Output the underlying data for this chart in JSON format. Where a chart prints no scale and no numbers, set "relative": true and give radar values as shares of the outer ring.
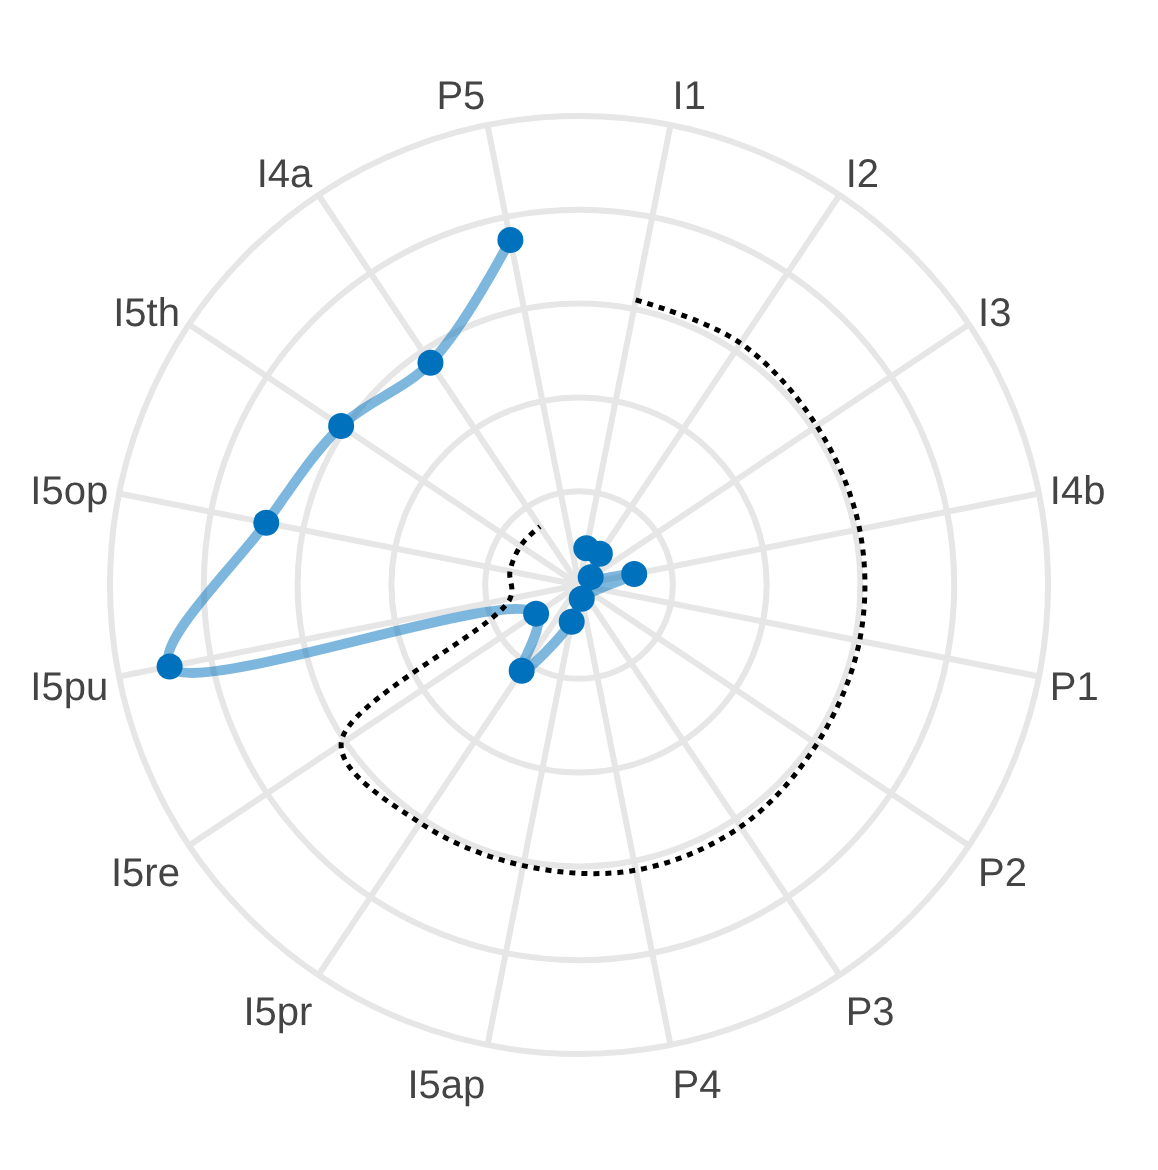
{
  "chart_data": {
    "type": "radar",
    "relative": true,
    "grid": true,
    "categories": [
      "I1",
      "I2",
      "I3",
      "I4b",
      "P1",
      "P2",
      "P3",
      "P4",
      "I5ap",
      "I5pr",
      "I5re",
      "I5pu",
      "I5op",
      "I5th",
      "I4a",
      "P5"
    ],
    "series": [
      {
        "color": "#0072bd",
        "marker": "circle",
        "line_style": "solid",
        "values": [
          0.08,
          0.08,
          0.03,
          0.12,
          null,
          null,
          null,
          0.03,
          0.08,
          0.22,
          0.11,
          0.89,
          0.68,
          0.61,
          0.57,
          0.75
        ]
      },
      {
        "color": "#000000",
        "marker": "none",
        "line_style": "dotted",
        "values": [
          0.62,
          0.62,
          0.61,
          0.61,
          0.61,
          0.61,
          0.62,
          0.62,
          0.61,
          0.61,
          0.61,
          0.15,
          0.15,
          0.15,
          0.15,
          null
        ]
      }
    ]
  }
}
